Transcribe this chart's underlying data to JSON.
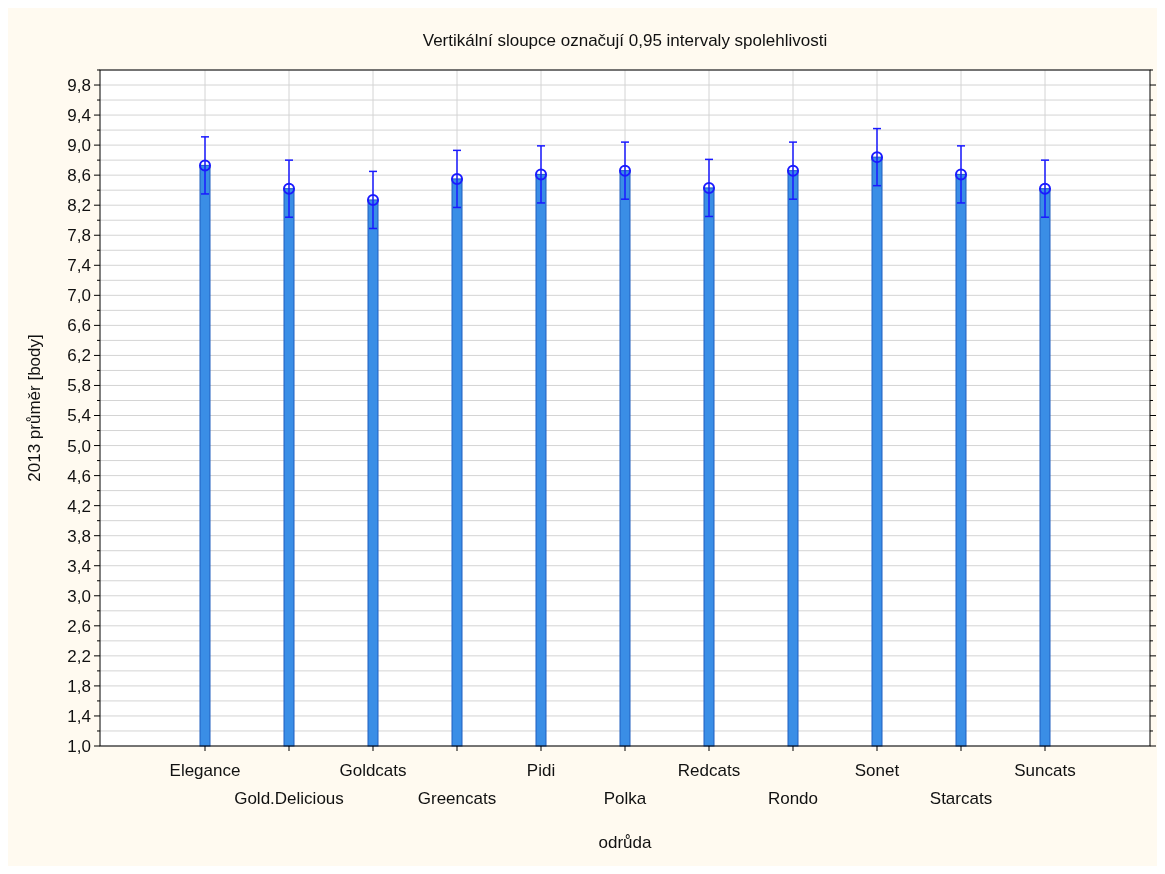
{
  "chart_data": {
    "type": "bar",
    "title": "Vertikální sloupce označují 0,95 intervaly spolehlivosti",
    "xlabel": "odrůda",
    "ylabel": "2013 průměr [body]",
    "categories": [
      "Elegance",
      "Gold.Delicious",
      "Goldcats",
      "Greencats",
      "Pidi",
      "Polka",
      "Redcats",
      "Rondo",
      "Sonet",
      "Starcats",
      "Suncats"
    ],
    "series": [
      {
        "type": "bar",
        "color": "#3a8ee6",
        "values": [
          8.73,
          8.42,
          8.27,
          8.55,
          8.61,
          8.66,
          8.43,
          8.66,
          8.84,
          8.61,
          8.42
        ]
      },
      {
        "type": "scatter",
        "color": "#1a1aff",
        "marker": "circle",
        "x": [
          "Elegance",
          "Gold.Delicious",
          "Goldcats",
          "Greencats",
          "Pidi",
          "Polka",
          "Redcats",
          "Rondo",
          "Sonet",
          "Starcats",
          "Suncats"
        ],
        "values": [
          8.73,
          8.42,
          8.27,
          8.55,
          8.61,
          8.66,
          8.43,
          8.66,
          8.84,
          8.61,
          8.42
        ],
        "errors": [
          0.38,
          0.38,
          0.38,
          0.38,
          0.38,
          0.38,
          0.38,
          0.38,
          0.38,
          0.38,
          0.38
        ]
      }
    ],
    "ylim": [
      1.0,
      10.0
    ],
    "yticks": [
      {
        "value": 1.0,
        "label": "1,0"
      },
      {
        "value": 1.2,
        "label": null
      },
      {
        "value": 1.4,
        "label": "1,4"
      },
      {
        "value": 1.6,
        "label": null
      },
      {
        "value": 1.8,
        "label": "1,8"
      },
      {
        "value": 2.0,
        "label": null
      },
      {
        "value": 2.2,
        "label": "2,2"
      },
      {
        "value": 2.4,
        "label": null
      },
      {
        "value": 2.6,
        "label": "2,6"
      },
      {
        "value": 2.8,
        "label": null
      },
      {
        "value": 3.0,
        "label": "3,0"
      },
      {
        "value": 3.2,
        "label": null
      },
      {
        "value": 3.4,
        "label": "3,4"
      },
      {
        "value": 3.6,
        "label": null
      },
      {
        "value": 3.8,
        "label": "3,8"
      },
      {
        "value": 4.0,
        "label": null
      },
      {
        "value": 4.2,
        "label": "4,2"
      },
      {
        "value": 4.4,
        "label": null
      },
      {
        "value": 4.6,
        "label": "4,6"
      },
      {
        "value": 4.8,
        "label": null
      },
      {
        "value": 5.0,
        "label": "5,0"
      },
      {
        "value": 5.2,
        "label": null
      },
      {
        "value": 5.4,
        "label": "5,4"
      },
      {
        "value": 5.6,
        "label": null
      },
      {
        "value": 5.8,
        "label": "5,8"
      },
      {
        "value": 6.0,
        "label": null
      },
      {
        "value": 6.2,
        "label": "6,2"
      },
      {
        "value": 6.4,
        "label": null
      },
      {
        "value": 6.6,
        "label": "6,6"
      },
      {
        "value": 6.8,
        "label": null
      },
      {
        "value": 7.0,
        "label": "7,0"
      },
      {
        "value": 7.2,
        "label": null
      },
      {
        "value": 7.4,
        "label": "7,4"
      },
      {
        "value": 7.6,
        "label": null
      },
      {
        "value": 7.8,
        "label": "7,8"
      },
      {
        "value": 8.0,
        "label": null
      },
      {
        "value": 8.2,
        "label": "8,2"
      },
      {
        "value": 8.4,
        "label": null
      },
      {
        "value": 8.6,
        "label": "8,6"
      },
      {
        "value": 8.8,
        "label": null
      },
      {
        "value": 9.0,
        "label": "9,0"
      },
      {
        "value": 9.2,
        "label": null
      },
      {
        "value": 9.4,
        "label": "9,4"
      },
      {
        "value": 9.6,
        "label": null
      },
      {
        "value": 9.8,
        "label": "9,8"
      },
      {
        "value": 10.0,
        "label": null
      }
    ],
    "grid": true
  }
}
